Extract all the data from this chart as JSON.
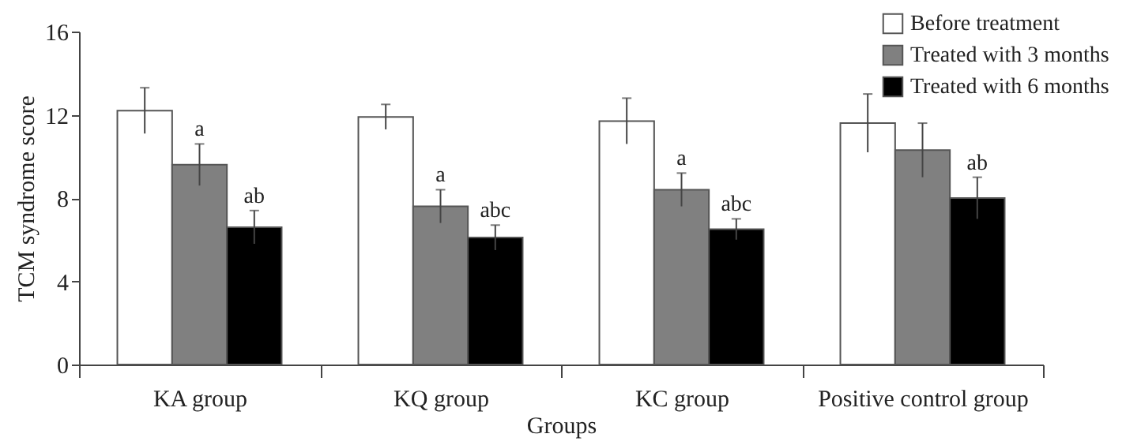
{
  "chart_data": {
    "type": "bar",
    "xlabel": "Groups",
    "ylabel": "TCM syndrome score",
    "categories": [
      "KA group",
      "KQ group",
      "KC group",
      "Positive control group"
    ],
    "series": [
      {
        "name": "Before treatment",
        "color": "#ffffff",
        "values": [
          12.2,
          11.9,
          11.7,
          11.6
        ],
        "errors": [
          1.1,
          0.6,
          1.1,
          1.4
        ]
      },
      {
        "name": "Treated with 3 months",
        "color": "#808080",
        "values": [
          9.6,
          7.6,
          8.4,
          10.3
        ],
        "value_labels": [
          "a",
          "a",
          "a",
          null
        ],
        "errors": [
          1.0,
          0.8,
          0.8,
          1.3
        ]
      },
      {
        "name": "Treated with 6 months",
        "color": "#000000",
        "values": [
          6.6,
          6.1,
          6.5,
          8.0
        ],
        "value_labels": [
          "ab",
          "abc",
          "abc",
          "ab"
        ],
        "errors": [
          0.8,
          0.6,
          0.5,
          1.0
        ]
      }
    ],
    "ylim": [
      0,
      16
    ],
    "yticks": [
      0,
      4,
      8,
      12,
      16
    ],
    "grid": false,
    "legend": "top right"
  }
}
